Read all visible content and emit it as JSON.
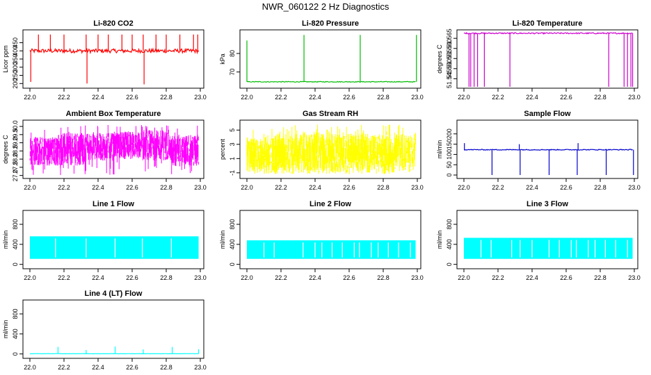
{
  "page": {
    "title": "NWR_060122  2 Hz Diagnostics"
  },
  "chart_data": [
    {
      "title": "Li-820 CO2",
      "ylabel": "Licor ppm",
      "type": "line",
      "color": "#ff0000",
      "xlim": [
        22.0,
        23.0
      ],
      "ylim": [
        180,
        520
      ],
      "xticks": [
        "22.0",
        "22.2",
        "22.4",
        "22.6",
        "22.8",
        "23.0"
      ],
      "yticks": [
        200,
        250,
        300,
        350,
        400,
        450
      ],
      "baseline": 400,
      "noise": 12,
      "x_start": 22.0,
      "x_end": 22.99,
      "spikes": [
        [
          22.005,
          210
        ],
        [
          22.05,
          500
        ],
        [
          22.12,
          500
        ],
        [
          22.2,
          500
        ],
        [
          22.33,
          500
        ],
        [
          22.335,
          200
        ],
        [
          22.4,
          500
        ],
        [
          22.46,
          500
        ],
        [
          22.54,
          500
        ],
        [
          22.6,
          500
        ],
        [
          22.665,
          500
        ],
        [
          22.67,
          195
        ],
        [
          22.74,
          500
        ],
        [
          22.8,
          500
        ],
        [
          22.88,
          500
        ],
        [
          22.96,
          500
        ],
        [
          22.985,
          500
        ]
      ]
    },
    {
      "title": "Li-820 Pressure",
      "ylabel": "kPa",
      "type": "line",
      "color": "#00bb00",
      "xlim": [
        22.0,
        23.0
      ],
      "ylim": [
        62,
        92
      ],
      "xticks": [
        "22.0",
        "22.2",
        "22.4",
        "22.6",
        "22.8",
        "23.0"
      ],
      "yticks": [
        70,
        80
      ],
      "baseline": 64.7,
      "noise": 0.2,
      "x_start": 22.0,
      "x_end": 22.99,
      "spikes": [
        [
          22.0,
          87
        ],
        [
          22.335,
          90
        ],
        [
          22.665,
          90
        ],
        [
          22.995,
          90
        ]
      ]
    },
    {
      "title": "Li-820 Temperature",
      "ylabel": "degrees C",
      "type": "line",
      "color": "#cc00cc",
      "xlim": [
        22.0,
        23.0
      ],
      "ylim": [
        51.541,
        51.5685
      ],
      "xticks": [
        "22.0",
        "22.2",
        "22.4",
        "22.6",
        "22.8",
        "23.0"
      ],
      "yticks": [
        "51.545",
        "51.550",
        "51.555",
        "51.560",
        "51.565"
      ],
      "baseline": 51.5675,
      "noise": 0.0003,
      "x_start": 22.0,
      "x_end": 22.99,
      "spikes": [
        [
          22.03,
          51.541
        ],
        [
          22.04,
          51.541
        ],
        [
          22.06,
          51.541
        ],
        [
          22.08,
          51.541
        ],
        [
          22.12,
          51.541
        ],
        [
          22.27,
          51.541
        ],
        [
          22.85,
          51.541
        ],
        [
          22.94,
          51.541
        ],
        [
          22.96,
          51.541
        ],
        [
          22.98,
          51.541
        ],
        [
          22.99,
          51.541
        ]
      ]
    },
    {
      "title": "Ambient Box Temperature",
      "ylabel": "degrees C",
      "type": "noise",
      "color": "#ff00ff",
      "xlim": [
        22.0,
        23.0
      ],
      "ylim": [
        26.9,
        30.3
      ],
      "xticks": [
        "22.0",
        "22.2",
        "22.4",
        "22.6",
        "22.8",
        "23.0"
      ],
      "yticks": [
        "27.0",
        "27.5",
        "28.0",
        "28.5",
        "29.0",
        "29.5",
        "30.0"
      ],
      "band_low": [
        27.6,
        27.6,
        27.9,
        28.0,
        27.9,
        27.5
      ],
      "band_high": [
        29.4,
        29.6,
        29.6,
        29.7,
        29.8,
        29.5
      ],
      "extreme_low": 27.0,
      "extreme_high": 30.1,
      "x_start": 22.0,
      "x_end": 22.99
    },
    {
      "title": "Gas Stream RH",
      "ylabel": "percent",
      "type": "noise",
      "color": "#ffff00",
      "xlim": [
        22.0,
        23.0
      ],
      "ylim": [
        -1.6,
        6.2
      ],
      "xticks": [
        "22.0",
        "22.2",
        "22.4",
        "22.6",
        "22.8",
        "23.0"
      ],
      "yticks": [
        -1,
        1,
        3,
        5
      ],
      "band_low": [
        -1.0,
        -1.0,
        -1.0,
        -1.0,
        -1.0,
        -1.0
      ],
      "band_high": [
        4.0,
        4.5,
        4.8,
        4.5,
        4.5,
        4.5
      ],
      "extreme_low": -1.2,
      "extreme_high": 5.8,
      "x_start": 22.0,
      "x_end": 22.99
    },
    {
      "title": "Sample Flow",
      "ylabel": "ml/min",
      "type": "line",
      "color": "#0000cc",
      "xlim": [
        22.0,
        23.0
      ],
      "ylim": [
        -10,
        260
      ],
      "xticks": [
        "22.0",
        "22.2",
        "22.4",
        "22.6",
        "22.8",
        "23.0"
      ],
      "yticks": [
        0,
        50,
        100,
        150,
        200
      ],
      "baseline": 123,
      "noise": 2,
      "x_start": 22.0,
      "x_end": 22.99,
      "spikes": [
        [
          22.003,
          155
        ],
        [
          22.165,
          0
        ],
        [
          22.33,
          0
        ],
        [
          22.325,
          150
        ],
        [
          22.5,
          0
        ],
        [
          22.665,
          0
        ],
        [
          22.67,
          155
        ],
        [
          22.835,
          0
        ],
        [
          22.995,
          0
        ]
      ]
    },
    {
      "title": "Line 1 Flow",
      "ylabel": "ml/min",
      "type": "band",
      "color": "#00ffff",
      "xlim": [
        22.0,
        23.0
      ],
      "ylim": [
        -60,
        1050
      ],
      "xticks": [
        "22.0",
        "22.2",
        "22.4",
        "22.6",
        "22.8",
        "23.0"
      ],
      "yticks": [
        0,
        400,
        800
      ],
      "band_low": 110,
      "band_high": 560,
      "x_start": 22.0,
      "x_end": 22.99,
      "gaps": [
        22.15,
        22.33,
        22.5,
        22.66,
        22.83
      ]
    },
    {
      "title": "Line 2 Flow",
      "ylabel": "ml/min",
      "type": "band",
      "color": "#00ffff",
      "xlim": [
        22.0,
        23.0
      ],
      "ylim": [
        -60,
        1050
      ],
      "xticks": [
        "22.0",
        "22.2",
        "22.4",
        "22.6",
        "22.8",
        "23.0"
      ],
      "yticks": [
        0,
        400,
        800
      ],
      "band_low": 110,
      "band_high": 480,
      "x_start": 22.0,
      "x_end": 22.99,
      "gaps": [
        22.1,
        22.16,
        22.33,
        22.4,
        22.44,
        22.5,
        22.56,
        22.63,
        22.66,
        22.73,
        22.77,
        22.83,
        22.89,
        22.96
      ]
    },
    {
      "title": "Line 3 Flow",
      "ylabel": "ml/min",
      "type": "band",
      "color": "#00ffff",
      "xlim": [
        22.0,
        23.0
      ],
      "ylim": [
        -60,
        1050
      ],
      "xticks": [
        "22.0",
        "22.2",
        "22.4",
        "22.6",
        "22.8",
        "23.0"
      ],
      "yticks": [
        0,
        400,
        800
      ],
      "band_low": 110,
      "band_high": 530,
      "x_start": 22.0,
      "x_end": 22.99,
      "gaps": [
        22.1,
        22.16,
        22.28,
        22.33,
        22.4,
        22.5,
        22.56,
        22.63,
        22.66,
        22.73,
        22.77,
        22.83,
        22.89,
        22.96
      ]
    },
    {
      "title": "Line 4 (LT) Flow",
      "ylabel": "ml/min",
      "type": "line",
      "color": "#00ffff",
      "xlim": [
        22.0,
        23.0
      ],
      "ylim": [
        -60,
        1050
      ],
      "xticks": [
        "22.0",
        "22.2",
        "22.4",
        "22.6",
        "22.8",
        "23.0"
      ],
      "yticks": [
        0,
        400,
        800
      ],
      "baseline": 5,
      "noise": 3,
      "x_start": 22.0,
      "x_end": 22.99,
      "spikes": [
        [
          22.165,
          140
        ],
        [
          22.33,
          80
        ],
        [
          22.5,
          150
        ],
        [
          22.665,
          90
        ],
        [
          22.835,
          140
        ],
        [
          22.99,
          95
        ]
      ]
    }
  ]
}
